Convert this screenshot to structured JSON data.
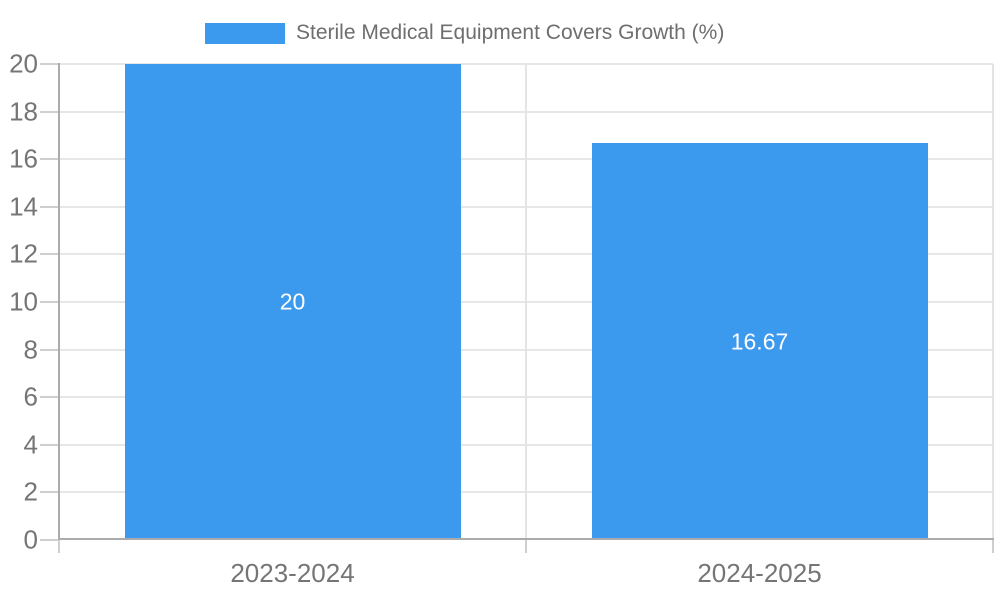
{
  "chart_data": {
    "type": "bar",
    "title": "Sterile Medical Equipment Covers Growth (%)",
    "categories": [
      "2023-2024",
      "2024-2025"
    ],
    "values": [
      20,
      16.67
    ],
    "value_labels": [
      "20",
      "16.67"
    ],
    "xlabel": "",
    "ylabel": "",
    "ylim": [
      0,
      20
    ],
    "yticks": [
      0,
      2,
      4,
      6,
      8,
      10,
      12,
      14,
      16,
      18,
      20
    ],
    "grid": true,
    "legend_position": "top-center",
    "series": [
      {
        "name": "Sterile Medical Equipment Covers Growth (%)",
        "values": [
          20,
          16.67
        ]
      }
    ]
  },
  "legend": {
    "label": "Sterile Medical Equipment Covers Growth (%)"
  },
  "colors": {
    "bar": "#3B99EE",
    "grid": "#E7E7E7",
    "grid_vertical": "#E4E4E4",
    "axis_line": "#ABABAB",
    "tick": "#CFCFCF",
    "axis_label": "#757575",
    "title": "#6E6E6E",
    "value_label": "#FFFFFF",
    "background": "#FFFFFF"
  }
}
